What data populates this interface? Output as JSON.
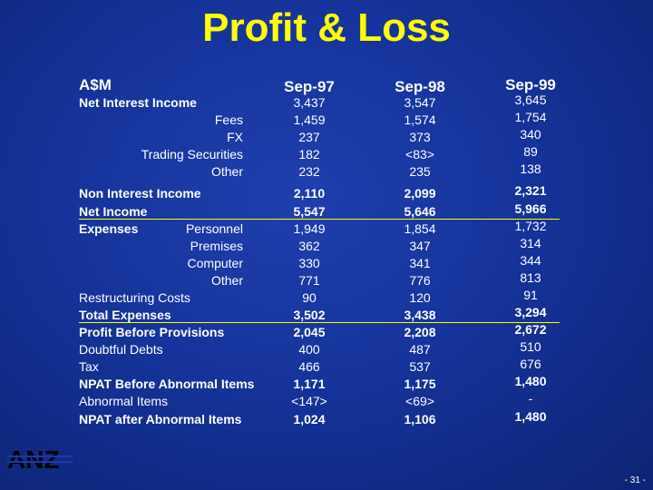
{
  "title": "Profit & Loss",
  "columns": [
    "A$M",
    "Sep-97",
    "Sep-98",
    "Sep-99"
  ],
  "rows": [
    {
      "label": "Net Interest Income",
      "sub": "",
      "v": [
        "3,437",
        "3,547",
        "3,645"
      ]
    },
    {
      "label": "",
      "sub": "Fees",
      "v": [
        "1,459",
        "1,574",
        "1,754"
      ]
    },
    {
      "label": "",
      "sub": "FX",
      "v": [
        "237",
        "373",
        "340"
      ]
    },
    {
      "label": "",
      "sub": "Trading Securities",
      "v": [
        "182",
        "<83>",
        "89"
      ]
    },
    {
      "label": "",
      "sub": "Other",
      "v": [
        "232",
        "235",
        "138"
      ]
    },
    {
      "label": "Non Interest Income",
      "sub": "",
      "v": [
        "2,110",
        "2,099",
        "2,321"
      ]
    },
    {
      "label": "Net Income",
      "sub": "",
      "v": [
        "5,547",
        "5,646",
        "5,966"
      ]
    },
    {
      "label": "Expenses",
      "sub": "Personnel",
      "v": [
        "1,949",
        "1,854",
        "1,732"
      ]
    },
    {
      "label": "",
      "sub": "Premises",
      "v": [
        "362",
        "347",
        "314"
      ]
    },
    {
      "label": "",
      "sub": "Computer",
      "v": [
        "330",
        "341",
        "344"
      ]
    },
    {
      "label": "",
      "sub": "Other",
      "v": [
        "771",
        "776",
        "813"
      ]
    },
    {
      "label": "Restructuring Costs",
      "sub": "",
      "v": [
        "90",
        "120",
        "91"
      ]
    },
    {
      "label": "Total Expenses",
      "sub": "",
      "v": [
        "3,502",
        "3,438",
        "3,294"
      ]
    },
    {
      "label": "Profit Before Provisions",
      "sub": "",
      "v": [
        "2,045",
        "2,208",
        "2,672"
      ]
    },
    {
      "label": "Doubtful Debts",
      "sub": "",
      "v": [
        "400",
        "487",
        "510"
      ]
    },
    {
      "label": "Tax",
      "sub": "",
      "v": [
        "466",
        "537",
        "676"
      ]
    },
    {
      "label": "NPAT Before Abnormal Items",
      "sub": "",
      "v": [
        "1,171",
        "1,175",
        "1,480"
      ]
    },
    {
      "label": "Abnormal Items",
      "sub": "",
      "v": [
        "<147>",
        "<69>",
        "-"
      ]
    },
    {
      "label": "NPAT after Abnormal Items",
      "sub": "",
      "v": [
        "1,024",
        "1,106",
        "1,480"
      ]
    }
  ],
  "logo": "ANZ",
  "page_number": "- 31 -"
}
